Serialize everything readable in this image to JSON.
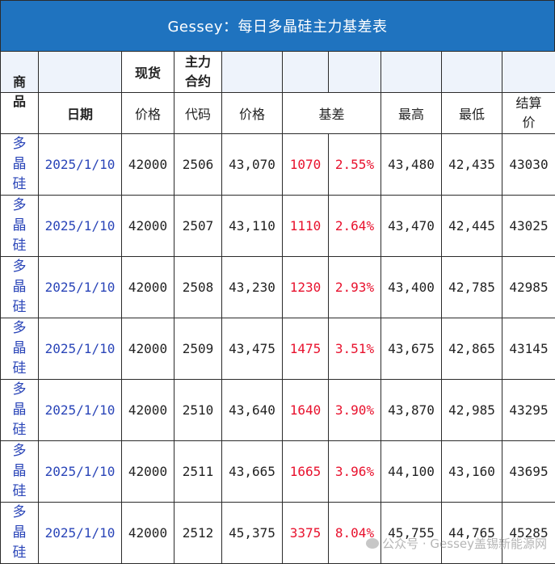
{
  "title": "Gessey：每日多晶硅主力基差表",
  "header_row1": {
    "spot": "现货",
    "main_contract": [
      "主力",
      "合约"
    ]
  },
  "header_row2": {
    "commodity": [
      "商",
      "品"
    ],
    "date": "日期",
    "spot_price": "价格",
    "code": "代码",
    "price": "价格",
    "basis": "基差",
    "high": "最高",
    "low": "最低",
    "settle": [
      "结算",
      "价"
    ]
  },
  "rows": [
    {
      "commodity": [
        "多",
        "晶",
        "硅"
      ],
      "date": "2025/1/10",
      "spot": "42000",
      "code": "2506",
      "price": "43,070",
      "basis": "1070",
      "basis_pct": "2.55%",
      "high": "43,480",
      "low": "42,435",
      "settle": "43030"
    },
    {
      "commodity": [
        "多",
        "晶",
        "硅"
      ],
      "date": "2025/1/10",
      "spot": "42000",
      "code": "2507",
      "price": "43,110",
      "basis": "1110",
      "basis_pct": "2.64%",
      "high": "43,470",
      "low": "42,445",
      "settle": "43025"
    },
    {
      "commodity": [
        "多",
        "晶",
        "硅"
      ],
      "date": "2025/1/10",
      "spot": "42000",
      "code": "2508",
      "price": "43,230",
      "basis": "1230",
      "basis_pct": "2.93%",
      "high": "43,400",
      "low": "42,785",
      "settle": "42985"
    },
    {
      "commodity": [
        "多",
        "晶",
        "硅"
      ],
      "date": "2025/1/10",
      "spot": "42000",
      "code": "2509",
      "price": "43,475",
      "basis": "1475",
      "basis_pct": "3.51%",
      "high": "43,675",
      "low": "42,865",
      "settle": "43145"
    },
    {
      "commodity": [
        "多",
        "晶",
        "硅"
      ],
      "date": "2025/1/10",
      "spot": "42000",
      "code": "2510",
      "price": "43,640",
      "basis": "1640",
      "basis_pct": "3.90%",
      "high": "43,870",
      "low": "42,985",
      "settle": "43295"
    },
    {
      "commodity": [
        "多",
        "晶",
        "硅"
      ],
      "date": "2025/1/10",
      "spot": "42000",
      "code": "2511",
      "price": "43,665",
      "basis": "1665",
      "basis_pct": "3.96%",
      "high": "44,100",
      "low": "43,160",
      "settle": "43695"
    },
    {
      "commodity": [
        "多",
        "晶",
        "硅"
      ],
      "date": "2025/1/10",
      "spot": "42000",
      "code": "2512",
      "price": "45,375",
      "basis": "3375",
      "basis_pct": "8.04%",
      "high": "45,755",
      "low": "44,765",
      "settle": "45285"
    }
  ],
  "watermark": "公众号 · Gessey盖锡新能源网",
  "colors": {
    "title_bg": "#1f73bf",
    "blue_text": "#2a45b8",
    "red_text": "#e8112d",
    "header_fill": "#eef3fb"
  }
}
